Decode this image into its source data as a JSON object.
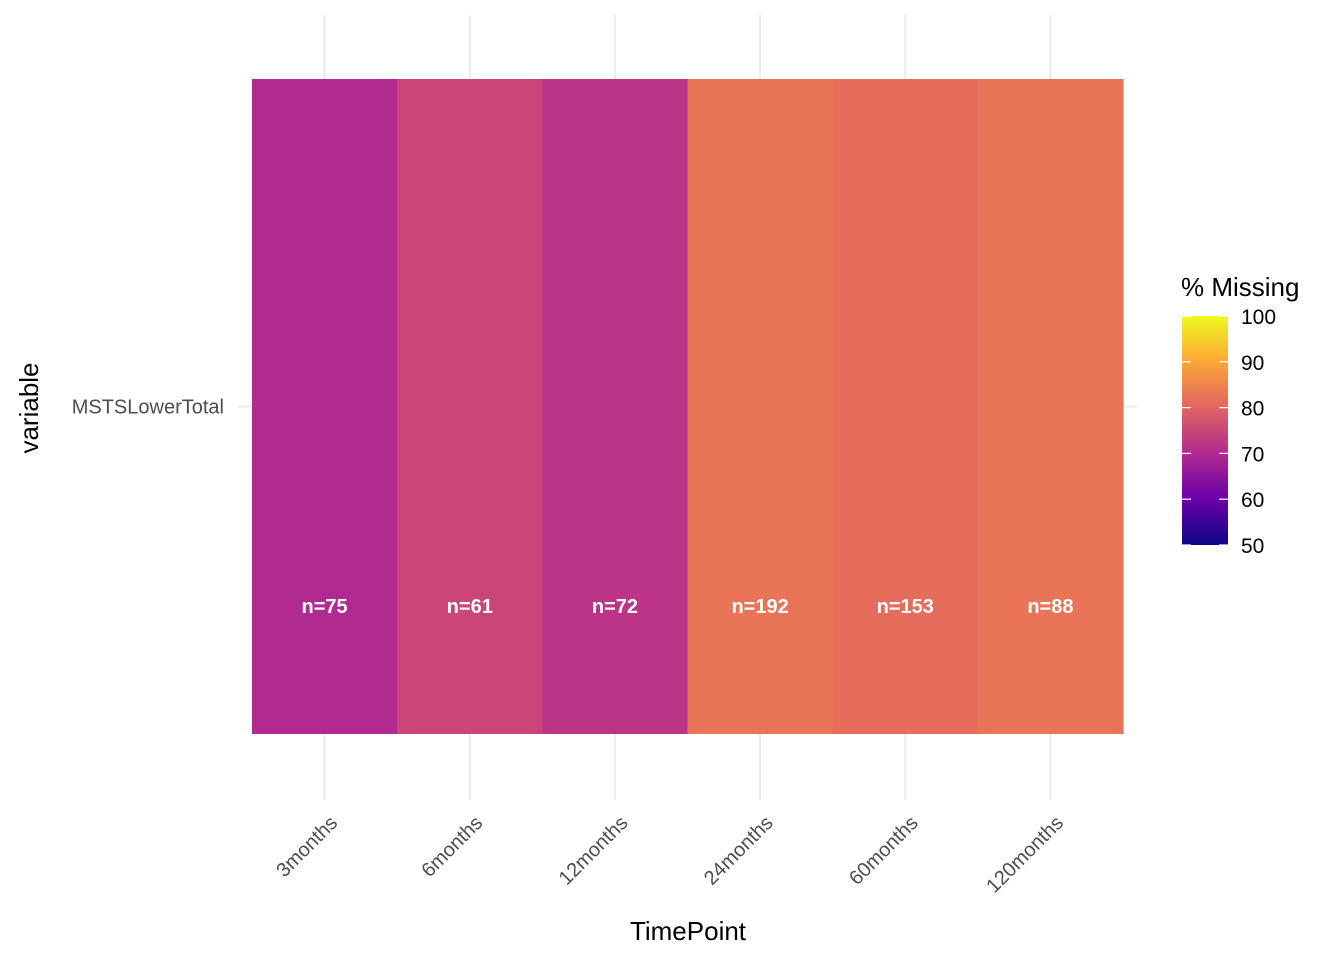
{
  "chart_data": {
    "type": "heatmap",
    "xlabel": "TimePoint",
    "ylabel": "variable",
    "categories": [
      "3months",
      "6months",
      "12months",
      "24months",
      "60months",
      "120months"
    ],
    "rows": [
      "MSTSLowerTotal"
    ],
    "values": [
      69,
      75,
      71,
      82,
      81,
      82
    ],
    "labels": [
      "n=75",
      "n=61",
      "n=72",
      "n=192",
      "n=153",
      "n=88"
    ],
    "cell_colors": [
      "#B12A8F",
      "#CA4678",
      "#BB3488",
      "#E97458",
      "#E66C5C",
      "#EA7457"
    ],
    "legend": {
      "title": "% Missing",
      "ticks": [
        "100",
        "90",
        "80",
        "70",
        "60",
        "50"
      ],
      "range": [
        50,
        100
      ],
      "palette": "plasma",
      "placement": "right"
    }
  }
}
